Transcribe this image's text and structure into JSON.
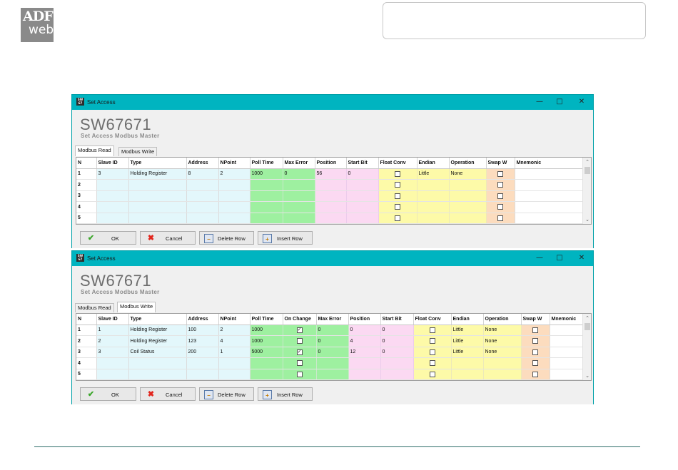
{
  "logo": {
    "line1": "ADF",
    "line2": "web"
  },
  "windows": [
    {
      "title": "Set Access",
      "app_name": "SW67671",
      "subtitle": "Set Access Modbus Master",
      "tabs": [
        "Modbus Read",
        "Modbus Write"
      ],
      "active_tab": 0,
      "columns": [
        "N",
        "Slave ID",
        "Type",
        "Address",
        "NPoint",
        "Poll Time",
        "Max Error",
        "Position",
        "Start Bit",
        "Float Conv",
        "Endian",
        "Operation",
        "Swap W",
        "Mnemonic"
      ],
      "rows": [
        [
          "1",
          "3",
          "Holding Register",
          "8",
          "2",
          "1000",
          "0",
          "56",
          "0",
          false,
          "Little",
          "None",
          false,
          ""
        ],
        [
          "2",
          "",
          "",
          "",
          "",
          "",
          "",
          "",
          "",
          false,
          "",
          "",
          false,
          ""
        ],
        [
          "3",
          "",
          "",
          "",
          "",
          "",
          "",
          "",
          "",
          false,
          "",
          "",
          false,
          ""
        ],
        [
          "4",
          "",
          "",
          "",
          "",
          "",
          "",
          "",
          "",
          false,
          "",
          "",
          false,
          ""
        ],
        [
          "5",
          "",
          "",
          "",
          "",
          "",
          "",
          "",
          "",
          false,
          "",
          "",
          false,
          ""
        ]
      ],
      "buttons": {
        "ok": "OK",
        "cancel": "Cancel",
        "delete_row": "Delete Row",
        "insert_row": "Insert Row"
      }
    },
    {
      "title": "Set Access",
      "app_name": "SW67671",
      "subtitle": "Set Access Modbus Master",
      "tabs": [
        "Modbus Read",
        "Modbus Write"
      ],
      "active_tab": 1,
      "columns": [
        "N",
        "Slave ID",
        "Type",
        "Address",
        "NPoint",
        "Poll Time",
        "On Change",
        "Max Error",
        "Position",
        "Start Bit",
        "Float Conv",
        "Endian",
        "Operation",
        "Swap W",
        "Mnemonic"
      ],
      "rows": [
        [
          "1",
          "1",
          "Holding Register",
          "100",
          "2",
          "1000",
          true,
          "0",
          "0",
          "0",
          false,
          "Little",
          "None",
          false,
          ""
        ],
        [
          "2",
          "2",
          "Holding Register",
          "123",
          "4",
          "1000",
          false,
          "0",
          "4",
          "0",
          false,
          "Little",
          "None",
          false,
          ""
        ],
        [
          "3",
          "3",
          "Coil Status",
          "200",
          "1",
          "5000",
          true,
          "0",
          "12",
          "0",
          false,
          "Little",
          "None",
          false,
          ""
        ],
        [
          "4",
          "",
          "",
          "",
          "",
          "",
          false,
          "",
          "",
          "",
          false,
          "",
          "",
          false,
          ""
        ],
        [
          "5",
          "",
          "",
          "",
          "",
          "",
          false,
          "",
          "",
          "",
          false,
          "",
          "",
          false,
          ""
        ]
      ],
      "buttons": {
        "ok": "OK",
        "cancel": "Cancel",
        "delete_row": "Delete Row",
        "insert_row": "Insert Row"
      }
    }
  ],
  "colors": {
    "titlebar": "#00b4c0",
    "cyan_cells": "#e3f7fb",
    "green_cells": "#9ef0a0",
    "pink_cells": "#fbd9f2",
    "yellow_cells": "#fdfaa8",
    "orange_cells": "#fcdcbe"
  }
}
